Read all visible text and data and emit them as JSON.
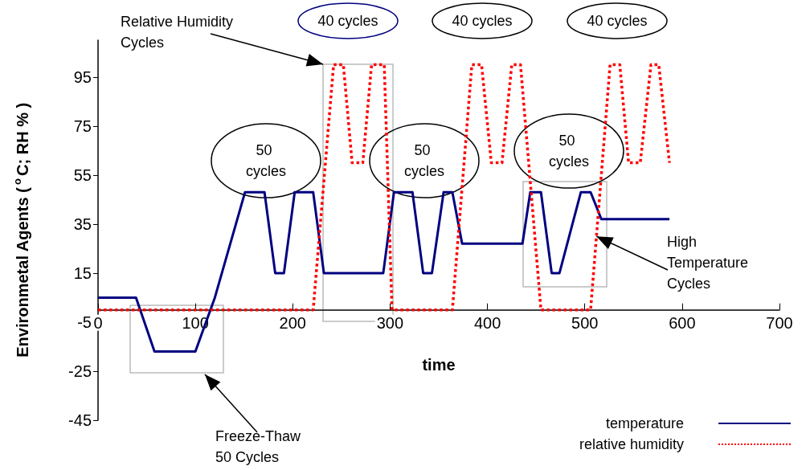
{
  "chart_data": {
    "type": "line",
    "xlabel": "time",
    "ylabel": "Environmetal Agents ($^{o}$C; RH % )",
    "xlim": [
      0,
      700
    ],
    "xticks": [
      0,
      100,
      200,
      300,
      400,
      500,
      600,
      700
    ],
    "ylim": [
      -45,
      110
    ],
    "yticks": [
      -45,
      -25,
      -5,
      15,
      35,
      55,
      75,
      95
    ],
    "grid": false,
    "legend": "bottom right",
    "marker": "none",
    "series": [
      {
        "name": "temperature",
        "color": "#000080",
        "line_style": "solid",
        "x": [
          0,
          39,
          58,
          100,
          120,
          151,
          171,
          182,
          191,
          202,
          221,
          232,
          293,
          304,
          323,
          334,
          343,
          355,
          364,
          374,
          436,
          444,
          455,
          466,
          474,
          496,
          506,
          517,
          587
        ],
        "values": [
          5,
          5,
          -17,
          -17,
          5,
          48,
          48,
          15,
          15,
          48,
          48,
          15,
          15,
          48,
          48,
          15,
          15,
          48,
          48,
          27,
          27,
          48,
          48,
          15,
          15,
          48,
          48,
          37,
          37
        ]
      },
      {
        "name": "relative humidity",
        "color": "#ff0000",
        "line_style": "dotted",
        "x": [
          0,
          221,
          242,
          252,
          261,
          272,
          281,
          294,
          302,
          364,
          384,
          394,
          404,
          415,
          425,
          434,
          455,
          506,
          526,
          536,
          545,
          557,
          568,
          576,
          587
        ],
        "values": [
          0,
          0,
          100,
          100,
          60,
          60,
          100,
          100,
          0,
          0,
          100,
          100,
          60,
          60,
          100,
          100,
          0,
          0,
          100,
          100,
          60,
          60,
          100,
          100,
          60
        ]
      }
    ],
    "annotations": [
      "Relative Humidity Cycles",
      "40 cycles",
      "40 cycles",
      "40 cycles",
      "50 cycles",
      "50 cycles",
      "50 cycles",
      {
        "text": "High Temperature Cycles",
        "x": 512,
        "y": 30
      },
      "Freeze-Thaw 50 Cycles"
    ]
  }
}
